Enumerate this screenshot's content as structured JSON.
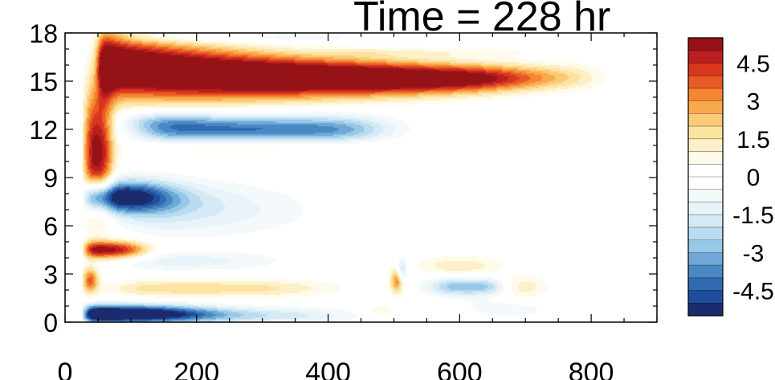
{
  "title": "Time = 228 hr",
  "chart_data": {
    "type": "heatmap",
    "title": "Time = 228 hr",
    "xlabel": "",
    "ylabel": "",
    "xlim": [
      0,
      900
    ],
    "ylim": [
      0,
      18
    ],
    "xticks": [
      0,
      200,
      400,
      600,
      800
    ],
    "yticks": [
      0,
      3,
      6,
      9,
      12,
      15,
      18
    ],
    "colorbar": {
      "levels": [
        -5.5,
        -5,
        -4.5,
        -4,
        -3.5,
        -3,
        -2.5,
        -2,
        -1.5,
        -1,
        -0.5,
        0,
        0.5,
        1,
        1.5,
        2,
        2.5,
        3,
        3.5,
        4,
        4.5,
        5,
        5.5
      ],
      "tick_labels": [
        "4.5",
        "3",
        "1.5",
        "0",
        "-1.5",
        "-3",
        "-4.5"
      ],
      "tick_values": [
        4.5,
        3,
        1.5,
        0,
        -1.5,
        -3,
        -4.5
      ],
      "colors": [
        "#1b2b6e",
        "#1f4e9f",
        "#3169b3",
        "#4a8ac4",
        "#6fa8d6",
        "#97c8e8",
        "#b9dcf0",
        "#d6eaf6",
        "#e9f4fa",
        "#f4f9fc",
        "#ffffff",
        "#ffffff",
        "#fffbea",
        "#fdf0c8",
        "#fde3a0",
        "#fcc977",
        "#f9a94d",
        "#f4872f",
        "#e85a24",
        "#d8361f",
        "#bb1e1f",
        "#951216"
      ]
    },
    "features": [
      {
        "name": "upper positive band",
        "sign": "positive",
        "x_range": [
          55,
          800
        ],
        "y_center": 15.3,
        "peak": 5.5
      },
      {
        "name": "upper negative band",
        "sign": "negative",
        "x_range": [
          130,
          480
        ],
        "y_center": 12.0,
        "peak": -3.5
      },
      {
        "name": "mid negative core",
        "sign": "negative",
        "x_range": [
          70,
          260
        ],
        "y_center": 7.8,
        "peak": -5.5
      },
      {
        "name": "low positive core",
        "sign": "positive",
        "x_range": [
          60,
          120
        ],
        "y_center": 4.5,
        "peak": 4.5
      },
      {
        "name": "surface negative layer",
        "sign": "negative",
        "x_range": [
          40,
          420
        ],
        "y_center": 0.5,
        "peak": -5.5
      },
      {
        "name": "near-surface positive band",
        "sign": "positive",
        "x_range": [
          80,
          380
        ],
        "y_center": 2.2,
        "peak": 1.5
      }
    ]
  }
}
